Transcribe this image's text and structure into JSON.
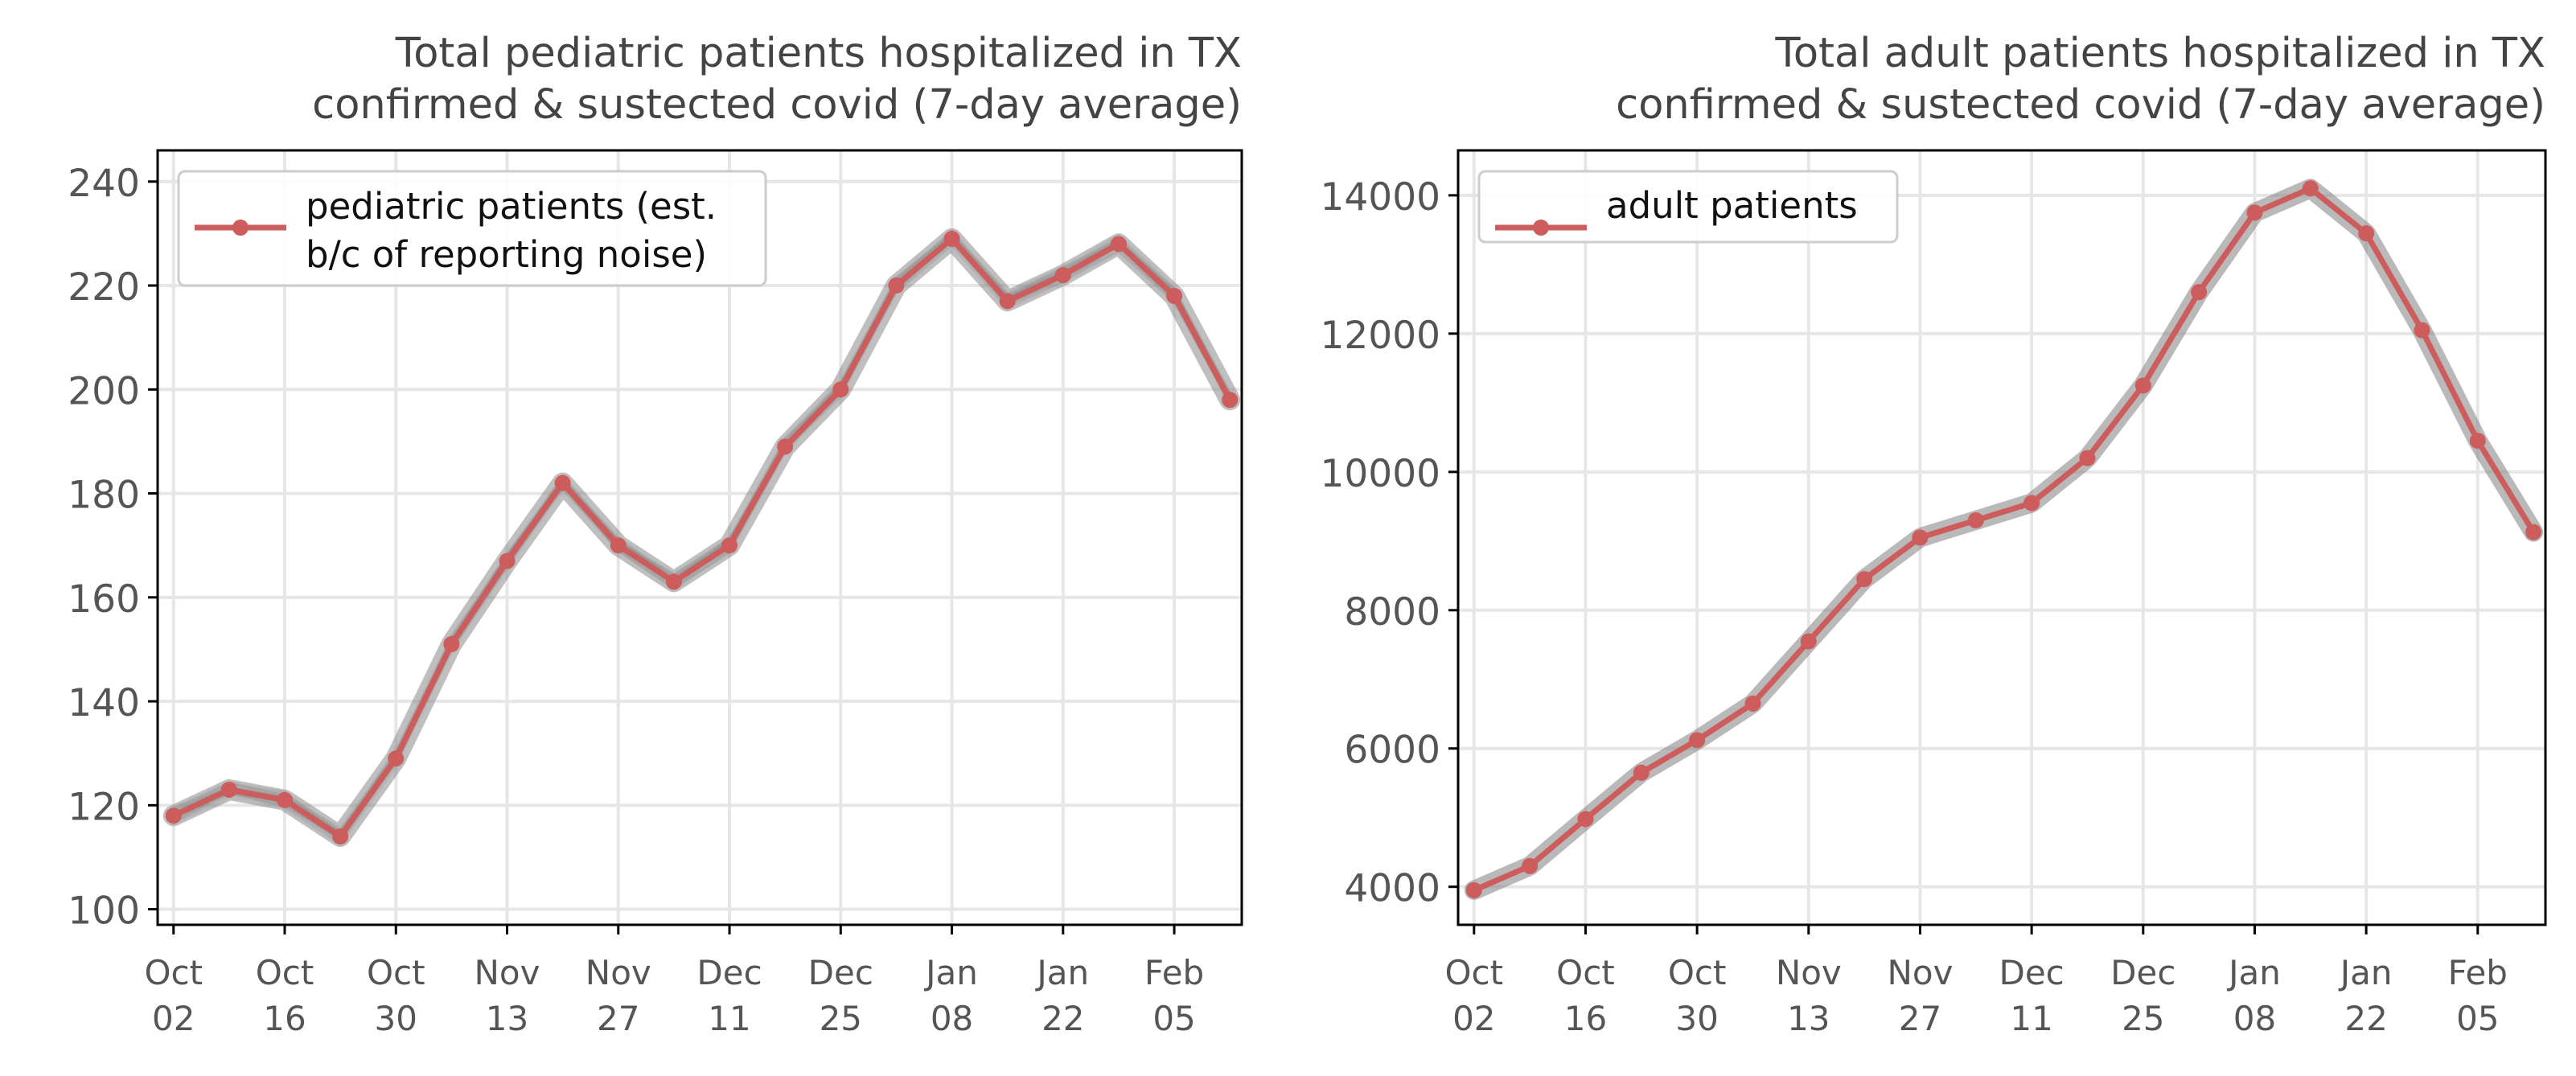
{
  "colors": {
    "series_line": "#cd5c5c",
    "band": "#8a8a8a",
    "grid": "#e6e6e6",
    "text": "#555555",
    "axis": "#000000"
  },
  "chart_data": [
    {
      "type": "line",
      "title_lines": [
        "Total pediatric patients hospitalized in TX",
        "confirmed & sustected covid (7-day average)"
      ],
      "legend": {
        "lines": [
          "pediatric patients (est.",
          "b/c of reporting noise)"
        ],
        "placement": "upper-left"
      },
      "x_ticks": [
        [
          "Oct",
          "02"
        ],
        [
          "Oct",
          "16"
        ],
        [
          "Oct",
          "30"
        ],
        [
          "Nov",
          "13"
        ],
        [
          "Nov",
          "27"
        ],
        [
          "Dec",
          "11"
        ],
        [
          "Dec",
          "25"
        ],
        [
          "Jan",
          "08"
        ],
        [
          "Jan",
          "22"
        ],
        [
          "Feb",
          "05"
        ]
      ],
      "x_tick_days": [
        0,
        14,
        28,
        42,
        56,
        70,
        84,
        98,
        112,
        126
      ],
      "xlim": [
        -2,
        134.5
      ],
      "ylim": [
        97,
        246
      ],
      "y_ticks": [
        100,
        120,
        140,
        160,
        180,
        200,
        220,
        240
      ],
      "grid": true,
      "band_kind": "spaghetti",
      "series": [
        {
          "x": [
            0,
            7,
            14,
            21,
            28,
            35,
            42,
            49,
            56,
            63,
            70,
            77,
            84,
            91,
            98,
            105,
            112,
            119,
            126,
            133
          ],
          "values": [
            118,
            123,
            121,
            114,
            129,
            151,
            167,
            182,
            170,
            163,
            170,
            189,
            200,
            220,
            229,
            217,
            222,
            228,
            218,
            198
          ]
        }
      ]
    },
    {
      "type": "line",
      "title_lines": [
        "Total adult patients hospitalized in TX",
        "confirmed & sustected covid (7-day average)"
      ],
      "legend": {
        "lines": [
          "adult patients"
        ],
        "placement": "upper-left"
      },
      "x_ticks": [
        [
          "Oct",
          "02"
        ],
        [
          "Oct",
          "16"
        ],
        [
          "Oct",
          "30"
        ],
        [
          "Nov",
          "13"
        ],
        [
          "Nov",
          "27"
        ],
        [
          "Dec",
          "11"
        ],
        [
          "Dec",
          "25"
        ],
        [
          "Jan",
          "08"
        ],
        [
          "Jan",
          "22"
        ],
        [
          "Feb",
          "05"
        ]
      ],
      "x_tick_days": [
        0,
        14,
        28,
        42,
        56,
        70,
        84,
        98,
        112,
        126
      ],
      "xlim": [
        -2,
        134.5
      ],
      "ylim": [
        3450,
        14650
      ],
      "y_ticks": [
        4000,
        6000,
        8000,
        10000,
        12000,
        14000
      ],
      "grid": true,
      "band_kind": "thick",
      "series": [
        {
          "x": [
            0,
            7,
            14,
            21,
            28,
            35,
            42,
            49,
            56,
            63,
            70,
            77,
            84,
            91,
            98,
            105,
            112,
            119,
            126,
            133
          ],
          "values": [
            3950,
            4300,
            4980,
            5650,
            6120,
            6650,
            7550,
            8450,
            9050,
            9300,
            9550,
            10200,
            11250,
            12600,
            13750,
            14100,
            13450,
            12050,
            10450,
            9130
          ]
        }
      ]
    }
  ]
}
